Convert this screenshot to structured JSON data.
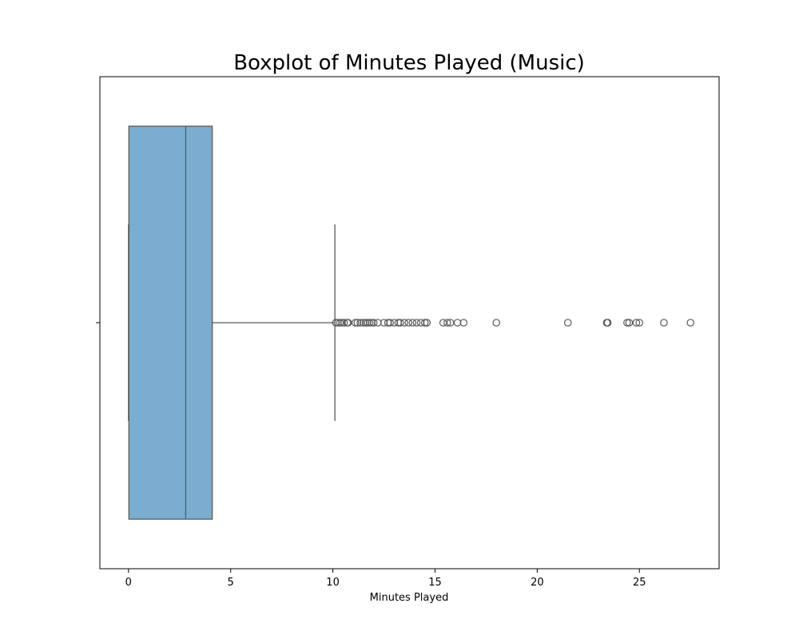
{
  "chart_data": {
    "type": "boxplot",
    "title": "Boxplot of Minutes Played (Music)",
    "xlabel": "Minutes Played",
    "ylabel": "",
    "orientation": "horizontal",
    "xlim": [
      -1.4,
      28.9
    ],
    "x_ticks": [
      0,
      5,
      10,
      15,
      20,
      25
    ],
    "x_tick_labels": [
      "0",
      "5",
      "10",
      "15",
      "20",
      "25"
    ],
    "grid": false,
    "box": {
      "min": 0.0,
      "q1": 0.02,
      "median": 2.8,
      "q3": 4.1,
      "whisker_high": 10.1
    },
    "outliers": [
      10.15,
      10.25,
      10.35,
      10.45,
      10.55,
      10.7,
      10.75,
      11.1,
      11.2,
      11.35,
      11.5,
      11.6,
      11.7,
      11.8,
      11.9,
      12.0,
      12.2,
      12.5,
      12.7,
      12.8,
      13.0,
      13.2,
      13.3,
      13.5,
      13.7,
      13.9,
      14.1,
      14.3,
      14.5,
      14.6,
      15.4,
      15.6,
      15.75,
      16.1,
      16.4,
      18.0,
      21.5,
      23.4,
      23.45,
      24.4,
      24.5,
      24.85,
      25.0,
      26.2,
      27.5
    ],
    "colors": {
      "box_fill": "#7aadcf",
      "line": "#595959",
      "outlier_edge": "#595959"
    }
  }
}
